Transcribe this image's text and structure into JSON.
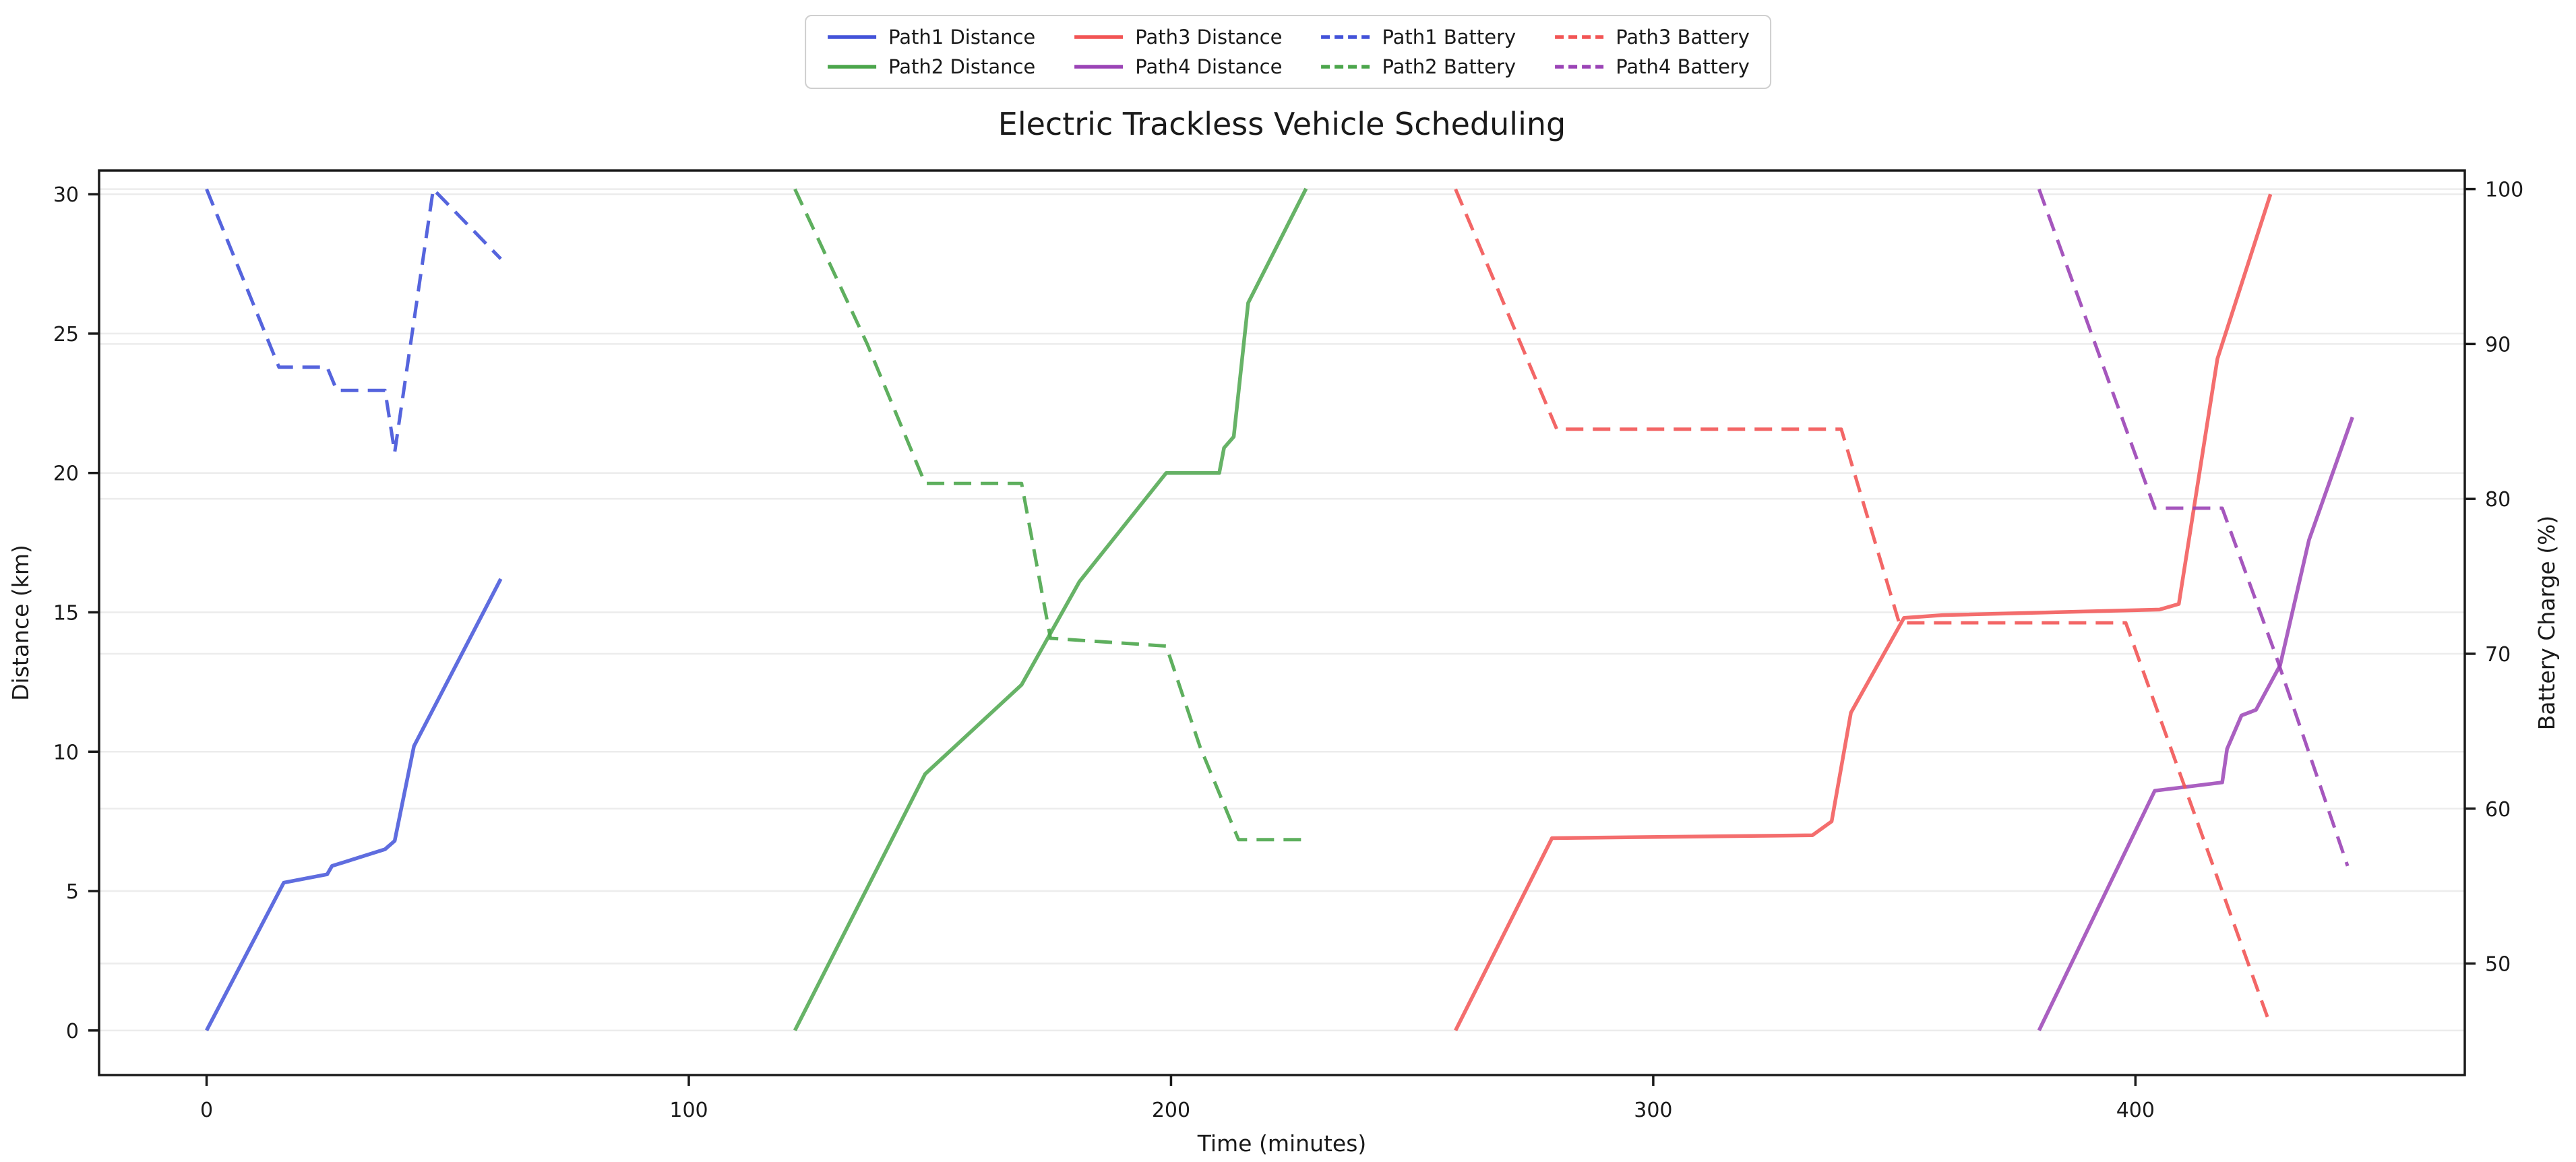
{
  "chart_data": {
    "type": "line",
    "title": "Electric Trackless Vehicle Scheduling",
    "xlabel": "Time (minutes)",
    "ylabel_left": "Distance (km)",
    "ylabel_right": "Battery Charge (%)",
    "x_ticks": [
      0,
      100,
      200,
      300,
      400
    ],
    "y_left_ticks": [
      0,
      5,
      10,
      15,
      20,
      25,
      30
    ],
    "y_right_ticks": [
      50,
      60,
      70,
      80,
      90,
      100
    ],
    "xlim": [
      -22.3,
      468.3
    ],
    "ylim_left": [
      -1.6,
      30.85
    ],
    "ylim_right": [
      42.8,
      101.2
    ],
    "grid": "very-faint-horizontal",
    "legend_position": "top-center",
    "legend_order_note": "two rows, column-major: distances first then batteries",
    "colors": {
      "path1": "#4353d9",
      "path2": "#4ca64c",
      "path3": "#f25555",
      "path4": "#9b44b6",
      "spine": "#1a1a1a",
      "grid": "#ececec",
      "text": "#1a1a1a",
      "legend_border": "#cfcfcf"
    },
    "series": [
      {
        "name": "Path1 Distance",
        "axis": "left",
        "style": "solid",
        "color": "#4353d9",
        "points": [
          [
            0,
            0
          ],
          [
            16,
            5.3
          ],
          [
            25,
            5.6
          ],
          [
            26,
            5.9
          ],
          [
            37,
            6.5
          ],
          [
            39,
            6.8
          ],
          [
            43,
            10.2
          ],
          [
            61,
            16.2
          ]
        ]
      },
      {
        "name": "Path2 Distance",
        "axis": "left",
        "style": "solid",
        "color": "#4ca64c",
        "points": [
          [
            122,
            0
          ],
          [
            149,
            9.2
          ],
          [
            169,
            12.4
          ],
          [
            181,
            16.1
          ],
          [
            199,
            20.0
          ],
          [
            210,
            20.0
          ],
          [
            211,
            20.9
          ],
          [
            213,
            21.3
          ],
          [
            216,
            26.1
          ],
          [
            228,
            30.2
          ]
        ]
      },
      {
        "name": "Path3 Distance",
        "axis": "left",
        "style": "solid",
        "color": "#f25555",
        "points": [
          [
            259,
            0
          ],
          [
            279,
            6.9
          ],
          [
            333,
            7.0
          ],
          [
            337,
            7.5
          ],
          [
            341,
            11.4
          ],
          [
            352,
            14.8
          ],
          [
            360,
            14.9
          ],
          [
            405,
            15.1
          ],
          [
            409,
            15.3
          ],
          [
            417,
            24.1
          ],
          [
            428,
            30.0
          ]
        ]
      },
      {
        "name": "Path4 Distance",
        "axis": "left",
        "style": "solid",
        "color": "#9b44b6",
        "points": [
          [
            380,
            0
          ],
          [
            404,
            8.6
          ],
          [
            418,
            8.9
          ],
          [
            419,
            10.1
          ],
          [
            422,
            11.3
          ],
          [
            425,
            11.5
          ],
          [
            430,
            13.1
          ],
          [
            436,
            17.6
          ],
          [
            445,
            22.0
          ]
        ]
      },
      {
        "name": "Path1 Battery",
        "axis": "right",
        "style": "dashed",
        "color": "#4353d9",
        "points": [
          [
            0,
            100
          ],
          [
            15,
            88.5
          ],
          [
            25,
            88.5
          ],
          [
            27,
            87
          ],
          [
            37,
            87
          ],
          [
            39,
            83
          ],
          [
            47,
            100
          ],
          [
            61,
            95.5
          ]
        ]
      },
      {
        "name": "Path2 Battery",
        "axis": "right",
        "style": "dashed",
        "color": "#4ca64c",
        "points": [
          [
            122,
            100
          ],
          [
            137,
            90
          ],
          [
            149,
            81
          ],
          [
            169,
            81
          ],
          [
            175,
            71
          ],
          [
            199,
            70.5
          ],
          [
            206,
            64
          ],
          [
            214,
            58
          ],
          [
            228,
            58
          ]
        ]
      },
      {
        "name": "Path3 Battery",
        "axis": "right",
        "style": "dashed",
        "color": "#f25555",
        "points": [
          [
            259,
            100
          ],
          [
            280,
            84.5
          ],
          [
            339,
            84.5
          ],
          [
            351,
            72
          ],
          [
            398,
            72
          ],
          [
            428,
            46
          ]
        ]
      },
      {
        "name": "Path4 Battery",
        "axis": "right",
        "style": "dashed",
        "color": "#9b44b6",
        "points": [
          [
            380,
            100
          ],
          [
            404,
            79.4
          ],
          [
            418,
            79.4
          ],
          [
            429,
            70
          ],
          [
            444,
            56.3
          ]
        ]
      }
    ]
  }
}
